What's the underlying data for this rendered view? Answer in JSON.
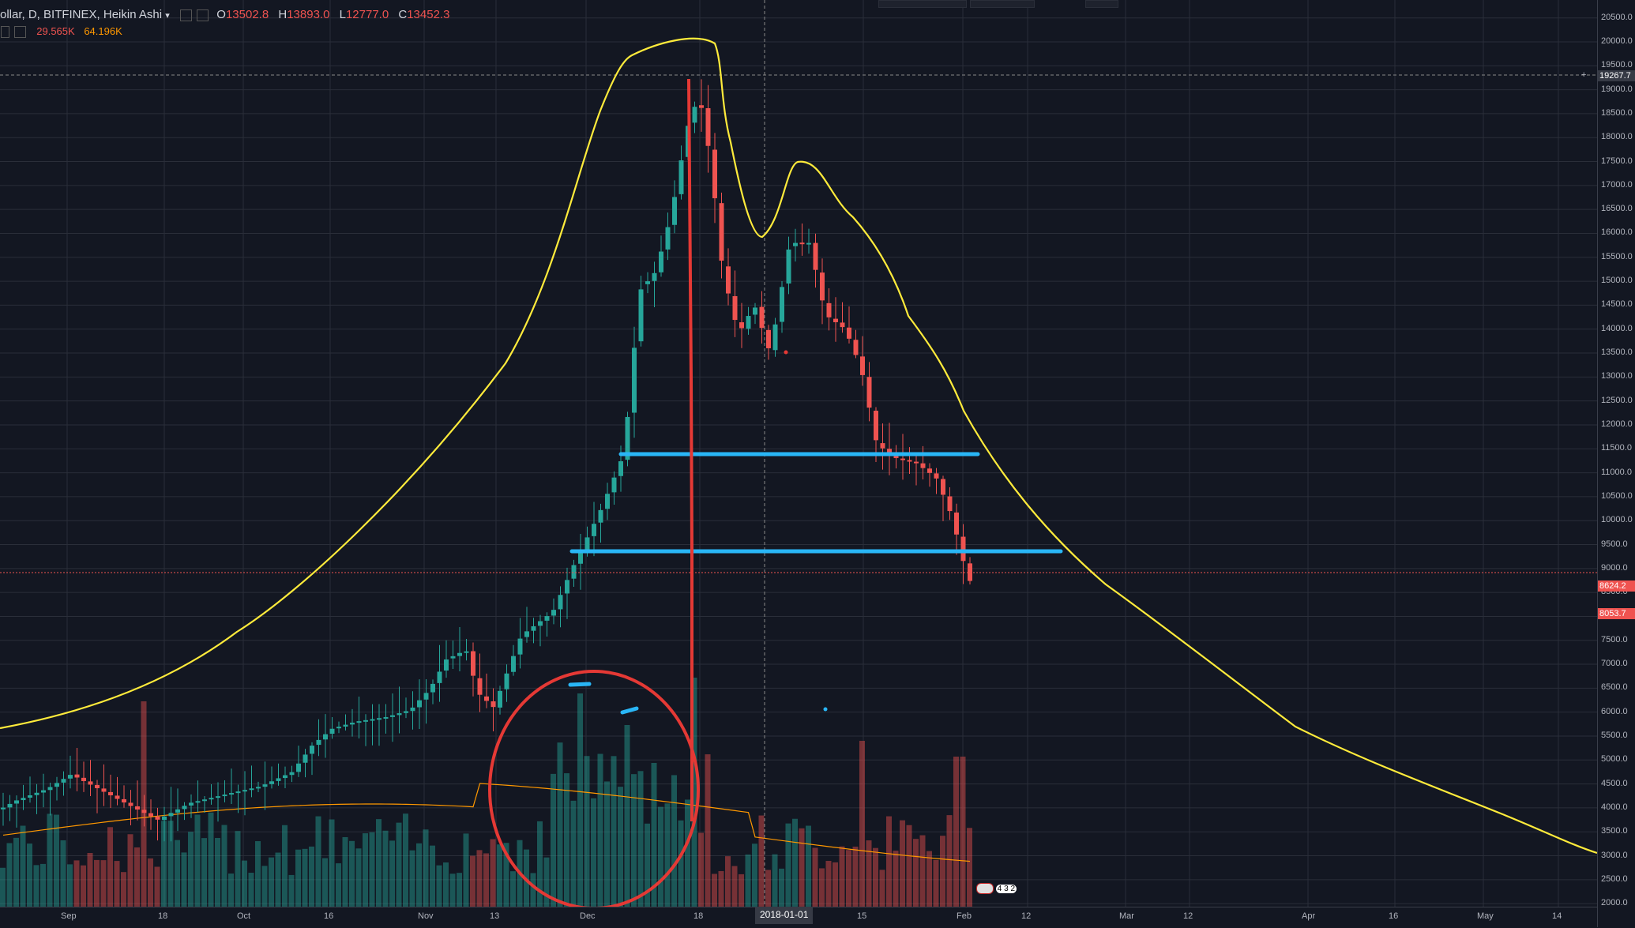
{
  "legend": {
    "symbol": "ollar, D, BITFINEX, Heikin Ashi",
    "caret": "▾",
    "o_label": "O",
    "o_value": "13502.8",
    "h_label": "H",
    "h_value": "13893.0",
    "l_label": "L",
    "l_value": "12777.0",
    "c_label": "C",
    "c_value": "13452.3",
    "vol_value": "29.565K",
    "vol_ma_value": "64.196K"
  },
  "price_axis": {
    "ticks": [
      "20500.0",
      "20000.0",
      "19500.0",
      "19000.0",
      "18500.0",
      "18000.0",
      "17500.0",
      "17000.0",
      "16500.0",
      "16000.0",
      "15500.0",
      "15000.0",
      "14500.0",
      "14000.0",
      "13500.0",
      "13000.0",
      "12500.0",
      "12000.0",
      "11500.0",
      "11000.0",
      "10500.0",
      "10000.0",
      "9500.0",
      "9000.0",
      "8500.0",
      "8000.0",
      "7500.0",
      "7000.0",
      "6500.0",
      "6000.0",
      "5500.0",
      "5000.0",
      "4500.0",
      "4000.0",
      "3500.0",
      "3000.0",
      "2500.0",
      "2000.0"
    ],
    "crosshair_value": "19267.7",
    "last_price": "8624.2",
    "low_price": "8053.7"
  },
  "time_axis": {
    "ticks": [
      "Sep",
      "18",
      "Oct",
      "16",
      "Nov",
      "13",
      "Dec",
      "18",
      "15",
      "Feb",
      "12",
      "Mar",
      "12",
      "Apr",
      "16",
      "May",
      "14"
    ],
    "crosshair_date": "2018-01-01"
  },
  "flags": {
    "event_count": "4 3 2"
  },
  "colors": {
    "background": "#131722",
    "up": "#26a69a",
    "down": "#ef5350",
    "volume_up": "#26a69a",
    "volume_down": "#ef5350",
    "volume_ma": "#ff9800",
    "drawing_curve": "#ffeb3b",
    "drawing_lines": "#29b6f6",
    "drawing_red": "#e53935"
  }
}
